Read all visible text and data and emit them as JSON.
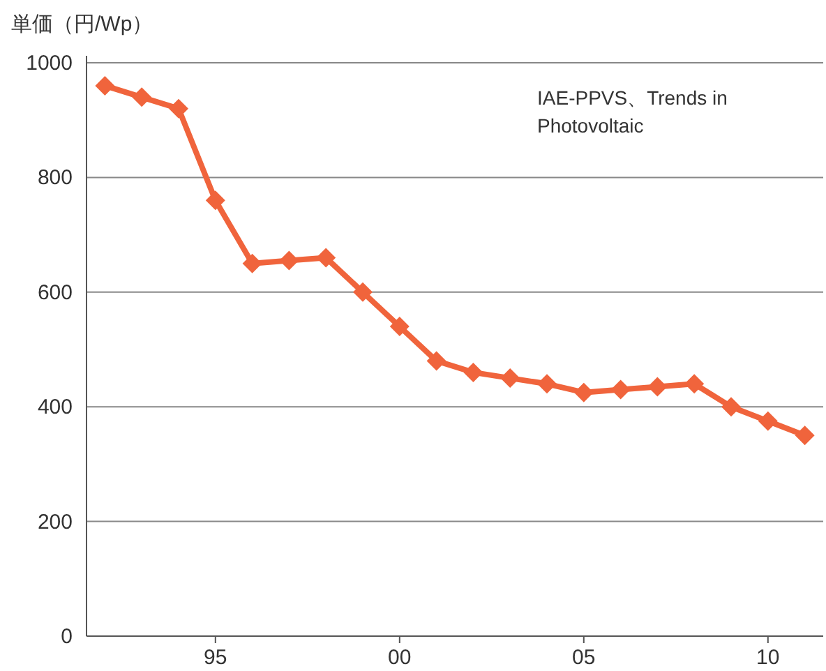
{
  "chart_data": {
    "type": "line",
    "ylabel": "単価（円/Wp）",
    "x": [
      1992,
      1993,
      1994,
      1995,
      1996,
      1997,
      1998,
      1999,
      2000,
      2001,
      2002,
      2003,
      2004,
      2005,
      2006,
      2007,
      2008,
      2009,
      2010,
      2011
    ],
    "series": [
      {
        "color": "#f0643c",
        "values": [
          960,
          940,
          920,
          760,
          650,
          655,
          660,
          600,
          540,
          480,
          460,
          450,
          440,
          425,
          430,
          435,
          440,
          400,
          375,
          350
        ]
      }
    ],
    "xlim": [
      1991.5,
      2011.5
    ],
    "xticks": [
      {
        "value": 1995,
        "label": "95"
      },
      {
        "value": 2000,
        "label": "00"
      },
      {
        "value": 2005,
        "label": "05"
      },
      {
        "value": 2010,
        "label": "10"
      }
    ],
    "ylim": [
      0,
      1000
    ],
    "yticks": [
      0,
      200,
      400,
      600,
      800,
      1000
    ],
    "grid": "y",
    "marker": "diamond",
    "line_style": "solid",
    "annotations": [
      {
        "text": "IAE-PPVS、Trends in Photovoltaic"
      }
    ]
  }
}
